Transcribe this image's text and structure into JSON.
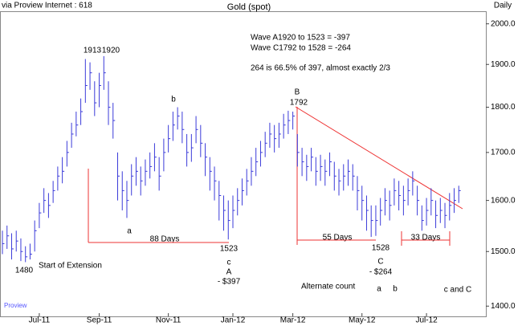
{
  "chart_data": {
    "type": "hlc",
    "title": "Gold (spot)",
    "log_scale": true,
    "color": "#3b3bd9",
    "categories": [
      null,
      null,
      null,
      null,
      null,
      null,
      null,
      null,
      "Jul-11",
      null,
      null,
      null,
      null,
      null,
      null,
      null,
      null,
      null,
      null,
      null,
      null,
      "Sep-11",
      null,
      null,
      null,
      null,
      null,
      null,
      null,
      null,
      null,
      null,
      null,
      null,
      null,
      null,
      "Nov-11",
      null,
      null,
      null,
      null,
      null,
      null,
      null,
      null,
      null,
      null,
      null,
      null,
      null,
      "Jan-12",
      null,
      null,
      null,
      null,
      null,
      null,
      null,
      null,
      null,
      null,
      null,
      null,
      "Mar-12",
      null,
      null,
      null,
      null,
      null,
      null,
      null,
      null,
      null,
      null,
      null,
      null,
      null,
      null,
      "May-12",
      null,
      null,
      null,
      null,
      null,
      null,
      null,
      null,
      null,
      null,
      null,
      null,
      null,
      "Jul-12",
      null,
      null,
      null,
      null,
      null,
      null,
      null
    ],
    "high": [
      1540,
      1550,
      1535,
      1540,
      1525,
      1510,
      1515,
      1560,
      1595,
      1625,
      1615,
      1640,
      1670,
      1690,
      1725,
      1765,
      1790,
      1820,
      1913,
      1905,
      1860,
      1880,
      1920,
      1860,
      1810,
      1700,
      1660,
      1640,
      1675,
      1690,
      1670,
      1685,
      1700,
      1720,
      1690,
      1730,
      1760,
      1790,
      1800,
      1790,
      1740,
      1740,
      1780,
      1760,
      1720,
      1690,
      1670,
      1640,
      1610,
      1600,
      1610,
      1625,
      1645,
      1665,
      1690,
      1710,
      1725,
      1745,
      1765,
      1760,
      1765,
      1785,
      1792,
      1790,
      1740,
      1710,
      1695,
      1710,
      1690,
      1695,
      1685,
      1700,
      1680,
      1665,
      1675,
      1685,
      1675,
      1650,
      1630,
      1610,
      1590,
      1590,
      1605,
      1625,
      1620,
      1645,
      1640,
      1630,
      1645,
      1660,
      1630,
      1590,
      1605,
      1625,
      1600,
      1605,
      1595,
      1615,
      1625,
      1630
    ],
    "low": [
      1495,
      1505,
      1485,
      1500,
      1482,
      1480,
      1485,
      1500,
      1545,
      1575,
      1565,
      1595,
      1620,
      1635,
      1670,
      1710,
      1735,
      1760,
      1810,
      1840,
      1780,
      1800,
      1840,
      1760,
      1730,
      1600,
      1580,
      1565,
      1610,
      1630,
      1610,
      1630,
      1645,
      1660,
      1620,
      1660,
      1700,
      1725,
      1750,
      1720,
      1670,
      1680,
      1720,
      1690,
      1650,
      1620,
      1600,
      1560,
      1540,
      1523,
      1545,
      1570,
      1590,
      1610,
      1630,
      1650,
      1670,
      1690,
      1710,
      1700,
      1710,
      1730,
      1740,
      1750,
      1670,
      1650,
      1640,
      1660,
      1630,
      1640,
      1630,
      1650,
      1620,
      1610,
      1620,
      1630,
      1620,
      1580,
      1560,
      1540,
      1528,
      1530,
      1550,
      1570,
      1560,
      1590,
      1580,
      1570,
      1590,
      1610,
      1570,
      1540,
      1550,
      1570,
      1545,
      1555,
      1545,
      1560,
      1575,
      1595
    ],
    "close": [
      1515,
      1530,
      1505,
      1520,
      1500,
      1490,
      1495,
      1540,
      1575,
      1600,
      1590,
      1620,
      1650,
      1660,
      1700,
      1740,
      1760,
      1790,
      1850,
      1880,
      1810,
      1850,
      1880,
      1800,
      1770,
      1650,
      1620,
      1600,
      1650,
      1660,
      1640,
      1660,
      1670,
      1690,
      1650,
      1700,
      1730,
      1760,
      1780,
      1750,
      1700,
      1710,
      1750,
      1720,
      1690,
      1660,
      1640,
      1610,
      1580,
      1560,
      1580,
      1600,
      1620,
      1640,
      1660,
      1680,
      1700,
      1720,
      1740,
      1730,
      1740,
      1760,
      1770,
      1780,
      1700,
      1680,
      1670,
      1690,
      1660,
      1670,
      1660,
      1680,
      1650,
      1640,
      1650,
      1660,
      1650,
      1620,
      1600,
      1580,
      1560,
      1560,
      1580,
      1600,
      1590,
      1620,
      1610,
      1600,
      1620,
      1640,
      1600,
      1560,
      1580,
      1600,
      1570,
      1580,
      1570,
      1590,
      1600,
      1620
    ],
    "ylim": [
      1382,
      2030
    ],
    "yticks": [
      {
        "value": 1400,
        "label": "1400.0"
      },
      {
        "value": 1500,
        "label": "1500.0"
      },
      {
        "value": 1600,
        "label": "1600.0"
      },
      {
        "value": 1700,
        "label": "1700.0"
      },
      {
        "value": 1800,
        "label": "1800.0"
      },
      {
        "value": 1900,
        "label": "1900.0"
      },
      {
        "value": 2000,
        "label": "2000.0"
      }
    ],
    "annotations": [
      "via Proview Internet : 618",
      "Daily",
      "Wave A1920 to 1523   = -397",
      "Wave C1792 to 1528   = -264",
      "264 is 66.5% of 397, almost exactly 2/3",
      "1913",
      "1920",
      "b",
      "B",
      "1792",
      "a",
      "88 Days",
      "1523",
      "c",
      "A",
      "- $397",
      "55 Days",
      "1528",
      "33 Days",
      "C",
      "- $264",
      "Start of Extension",
      "1480",
      "Alternate count",
      "a",
      "b",
      "c and C",
      "Proview"
    ]
  }
}
